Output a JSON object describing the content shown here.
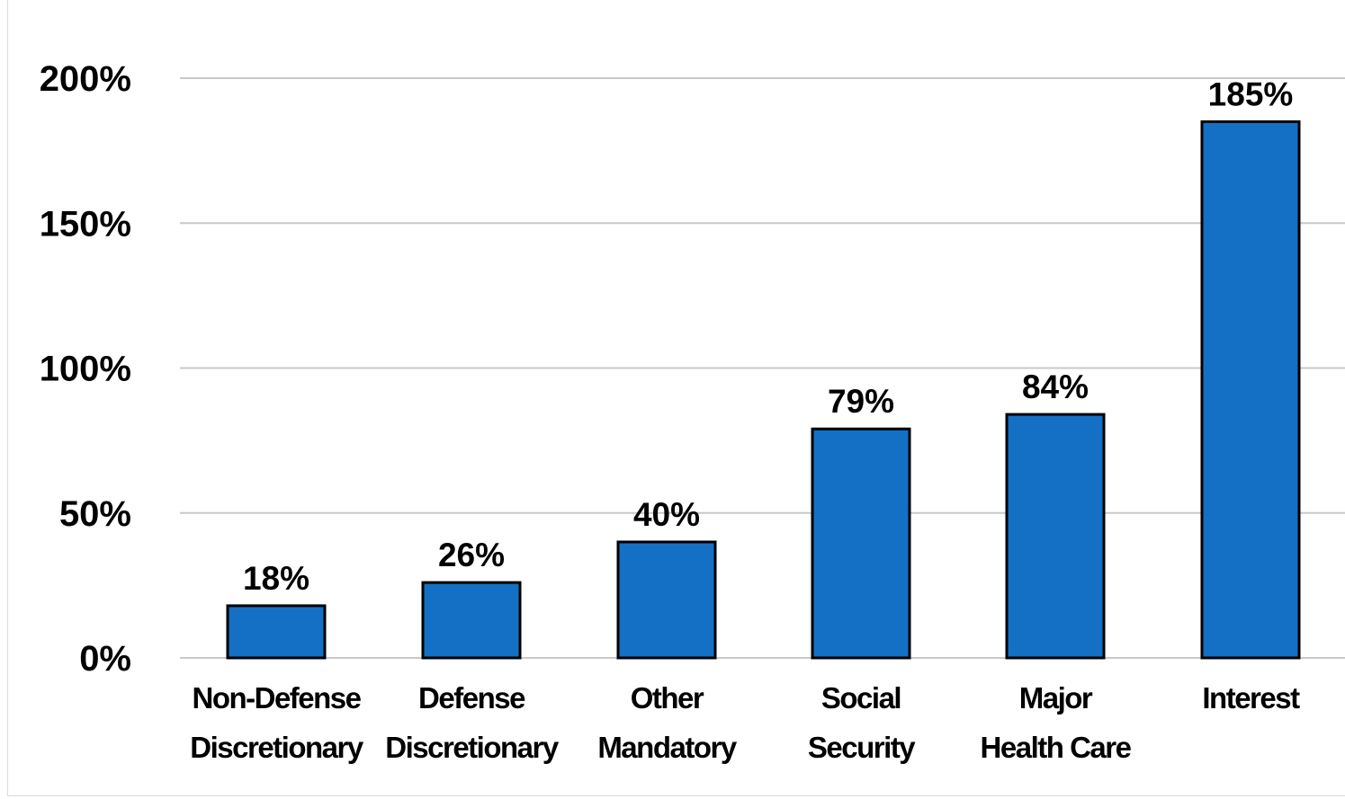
{
  "chart_data": {
    "type": "bar",
    "categories": [
      [
        "Non-Defense",
        "Discretionary"
      ],
      [
        "Defense",
        "Discretionary"
      ],
      [
        "Other",
        "Mandatory"
      ],
      [
        "Social",
        "Security"
      ],
      [
        "Major",
        "Health Care"
      ],
      [
        "Interest"
      ]
    ],
    "values": [
      18,
      26,
      40,
      79,
      84,
      185
    ],
    "data_labels": [
      "18%",
      "26%",
      "40%",
      "79%",
      "84%",
      "185%"
    ],
    "ylim": [
      0,
      200
    ],
    "yticks": [
      0,
      50,
      100,
      150,
      200
    ],
    "ytick_labels": [
      "0%",
      "50%",
      "100%",
      "150%",
      "200%"
    ],
    "grid": true,
    "colors": {
      "bar_fill": "#1470c4",
      "bar_stroke": "#000000",
      "gridline": "#c8c8c8"
    }
  }
}
